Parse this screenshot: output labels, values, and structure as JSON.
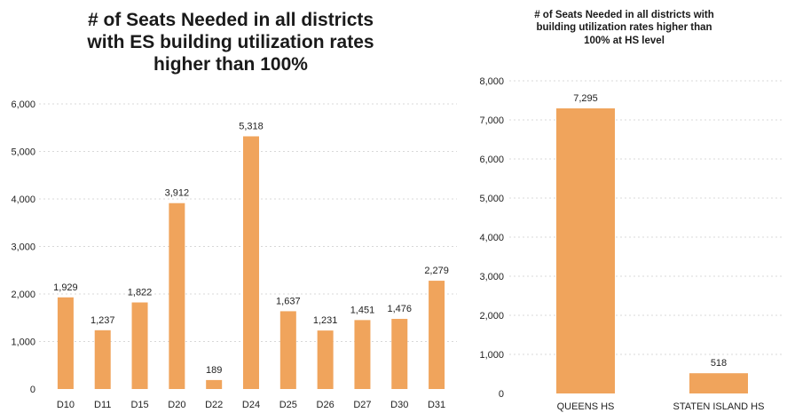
{
  "chart_data": [
    {
      "type": "bar",
      "title_lines": [
        "# of Seats Needed in all districts",
        "with ES building utilization rates",
        "higher than 100%"
      ],
      "categories": [
        "D10",
        "D11",
        "D15",
        "D20",
        "D22",
        "D24",
        "D25",
        "D26",
        "D27",
        "D30",
        "D31"
      ],
      "values": [
        1929,
        1237,
        1822,
        3912,
        189,
        5318,
        1637,
        1231,
        1451,
        1476,
        2279
      ],
      "value_labels": [
        "1,929",
        "1,237",
        "1,822",
        "3,912",
        "189",
        "5,318",
        "1,637",
        "1,231",
        "1,451",
        "1,476",
        "2,279"
      ],
      "ylim": [
        0,
        6000
      ],
      "yticks": [
        0,
        1000,
        2000,
        3000,
        4000,
        5000,
        6000
      ],
      "ytick_labels": [
        "0",
        "1,000",
        "2,000",
        "3,000",
        "4,000",
        "5,000",
        "6,000"
      ],
      "grid": true,
      "bar_color": "#f0a45c"
    },
    {
      "type": "bar",
      "title_lines": [
        "# of Seats Needed in all districts with",
        "building utilization rates higher than",
        "100% at HS level"
      ],
      "categories": [
        "QUEENS HS",
        "STATEN ISLAND HS"
      ],
      "values": [
        7295,
        518
      ],
      "value_labels": [
        "7,295",
        "518"
      ],
      "ylim": [
        0,
        8000
      ],
      "yticks": [
        0,
        1000,
        2000,
        3000,
        4000,
        5000,
        6000,
        7000,
        8000
      ],
      "ytick_labels": [
        "0",
        "1,000",
        "2,000",
        "3,000",
        "4,000",
        "5,000",
        "6,000",
        "7,000",
        "8,000"
      ],
      "grid": true,
      "bar_color": "#f0a45c"
    }
  ]
}
